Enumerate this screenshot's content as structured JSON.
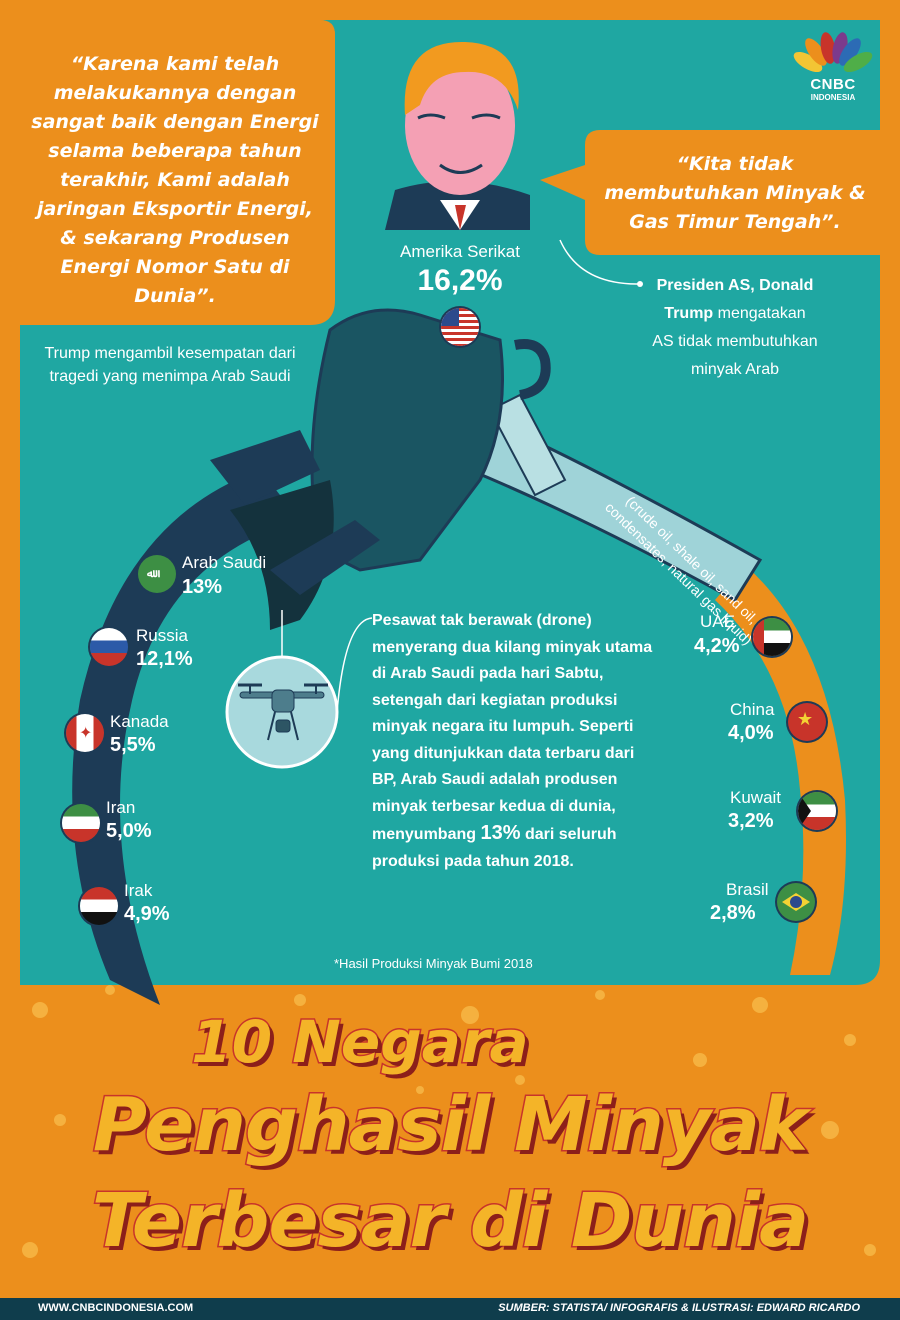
{
  "brand": {
    "name": "CNBC",
    "sub": "INDONESIA"
  },
  "quotes": {
    "left": "“Karena kami telah melakukannya dengan sangat baik dengan Energi selama beberapa tahun terakhir, Kami adalah jaringan Eksportir Energi, & sekarang Produsen Energi Nomor Satu di Dunia”.",
    "right": "“Kita tidak membutuhkan Minyak & Gas Timur Tengah”."
  },
  "captions": {
    "trump_tragedy": "Trump mengambil kesempatan dari tragedi yang menimpa Arab Saudi",
    "president_bold1": "Presiden AS, Donald",
    "president_bold2": "Trump",
    "president_rest1": " mengatakan",
    "president_rest2": "AS tidak membutuhkan",
    "president_rest3": "minyak Arab",
    "oil_types": "(crude oil, shale oil, sand oil, condensates, natural gas liquid)",
    "footnote": "*Hasil Produksi Minyak Bumi 2018"
  },
  "usa": {
    "label": "Amerika Serikat",
    "value": "16,2%"
  },
  "countries_left": [
    {
      "name": "Arab Saudi",
      "value": "13%"
    },
    {
      "name": "Russia",
      "value": "12,1%"
    },
    {
      "name": "Kanada",
      "value": "5,5%"
    },
    {
      "name": "Iran",
      "value": "5,0%"
    },
    {
      "name": "Irak",
      "value": "4,9%"
    }
  ],
  "countries_right": [
    {
      "name": "UAE",
      "value": "4,2%"
    },
    {
      "name": "China",
      "value": "4,0%"
    },
    {
      "name": "Kuwait",
      "value": "3,2%"
    },
    {
      "name": "Brasil",
      "value": "2,8%"
    }
  ],
  "body": {
    "part1": "Pesawat tak berawak (drone) menyerang dua kilang minyak utama di Arab Saudi pada hari Sabtu, setengah dari kegiatan produksi minyak negara itu lumpuh. Seperti yang ditunjukkan data terbaru dari BP, Arab Saudi adalah produsen minyak terbesar kedua di dunia, menyumbang ",
    "highlight": "13%",
    "part2": " dari seluruh produksi pada tahun 2018."
  },
  "title": {
    "line1": "10 Negara",
    "line2": "Penghasil Minyak",
    "line3": "Terbesar di Dunia"
  },
  "footer": {
    "website": "WWW.CNBCINDONESIA.COM",
    "source_label": "SUMBER: ",
    "source": "STATISTA",
    "sep": "/ INFOGRAFIS & ILUSTRASI: ",
    "author": "EDWARD RICARDO"
  },
  "colors": {
    "teal": "#1fa7a2",
    "orange": "#ec8f1c",
    "navy": "#1d3b56",
    "title_fill": "#f4b428",
    "title_stroke": "#c8342a"
  }
}
